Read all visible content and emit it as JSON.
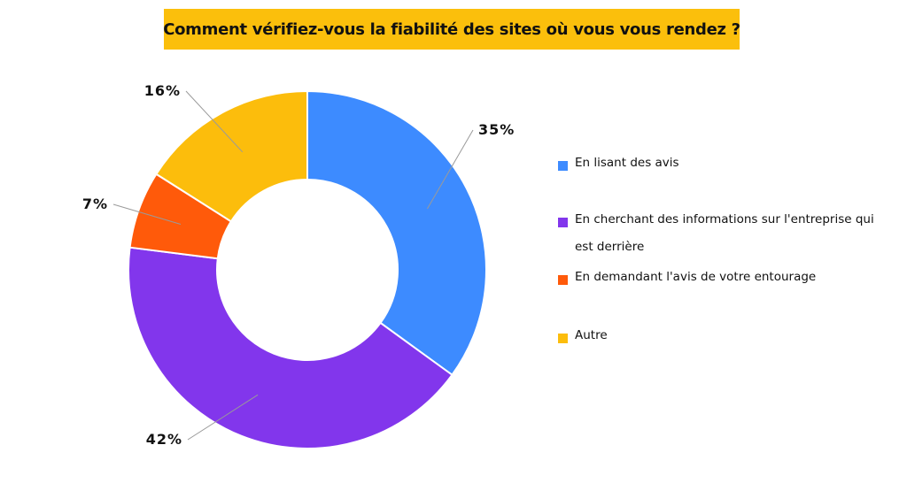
{
  "chart_data": {
    "type": "pie",
    "title": "Comment vérifiez-vous la fiabilité des sites où vous vous rendez ?",
    "donut": true,
    "legend_placement": "right",
    "slices": [
      {
        "name": "En lisant des avis",
        "value": 35,
        "label": "35%",
        "color": "#3d8bff"
      },
      {
        "name": "En cherchant des informations sur l'entreprise qui est derrière",
        "value": 42,
        "label": "42%",
        "color": "#8236ec"
      },
      {
        "name": "En demandant l'avis de votre entourage",
        "value": 7,
        "label": "7%",
        "color": "#ff5a0a"
      },
      {
        "name": "Autre",
        "value": 16,
        "label": "16%",
        "color": "#fcbd0c"
      }
    ]
  }
}
